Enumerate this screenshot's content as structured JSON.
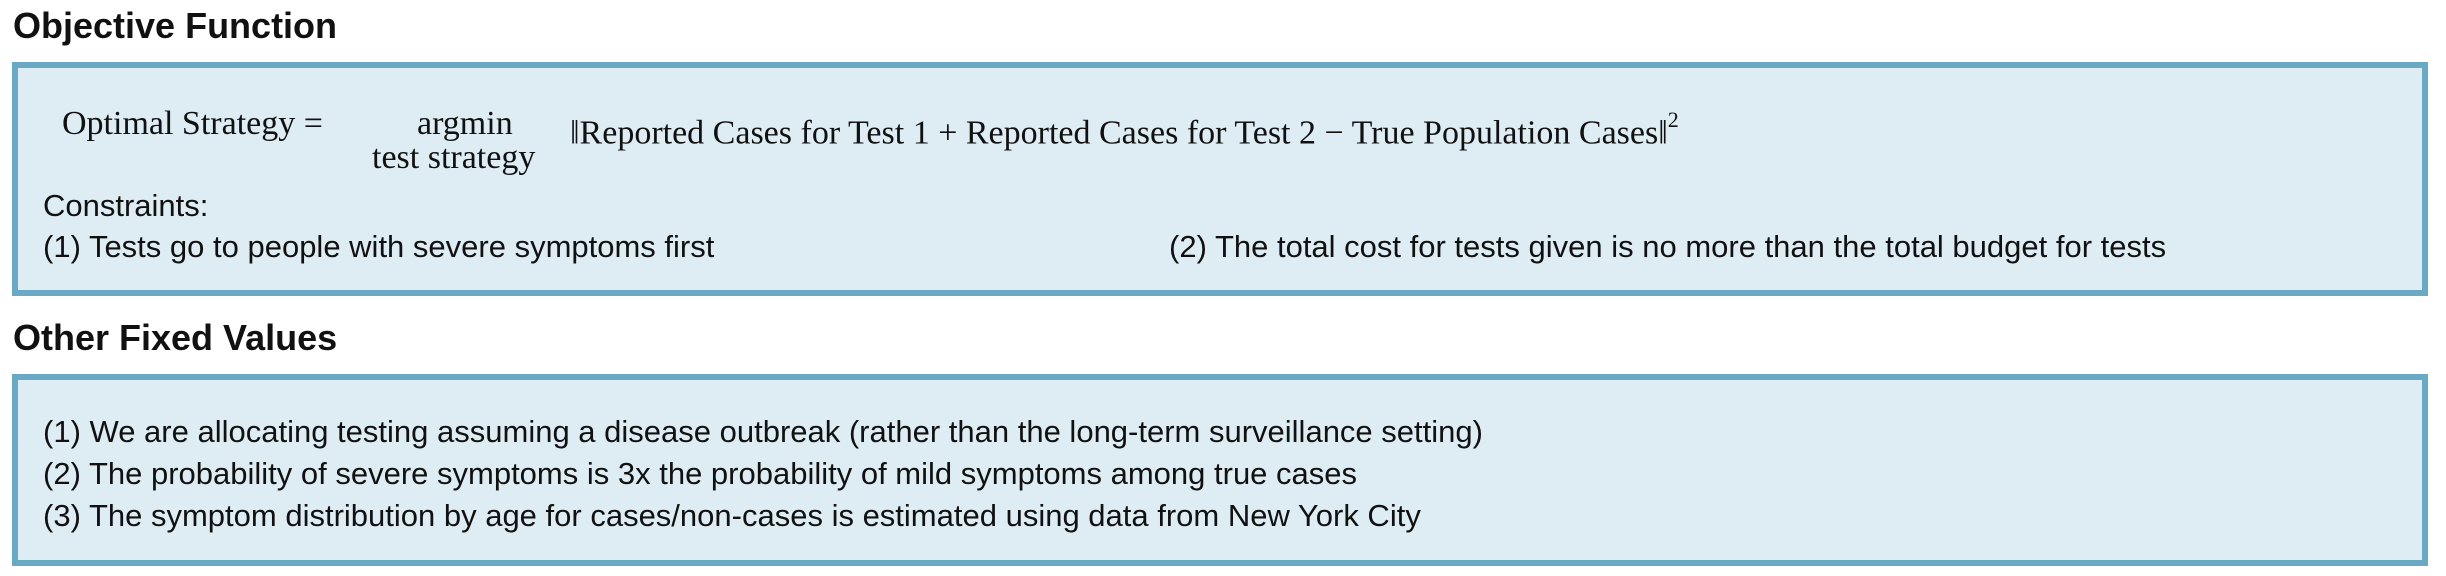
{
  "objective": {
    "heading": "Objective Function",
    "formula": {
      "lhs": "Optimal Strategy =",
      "operator": "argmin",
      "operator_subscript": "test strategy",
      "norm_expression": "‖Reported Cases for Test 1 + Reported Cases for Test 2 − True Population Cases‖",
      "exponent": "2"
    },
    "constraints_label": "Constraints:",
    "constraints": [
      "(1) Tests go to people with severe symptoms first",
      "(2) The total cost for tests given is no more than the total budget for tests"
    ]
  },
  "fixed_values": {
    "heading": "Other Fixed Values",
    "items": [
      "(1) We are allocating testing assuming a disease outbreak (rather than the long-term surveillance setting)",
      "(2) The probability of severe symptoms is 3x the probability of mild symptoms among true cases",
      "(3) The symptom distribution by age for cases/non-cases is estimated using data from New York City"
    ]
  },
  "colors": {
    "box_fill": "#deedf4",
    "box_border": "#6aa9c4",
    "text": "#111111"
  }
}
